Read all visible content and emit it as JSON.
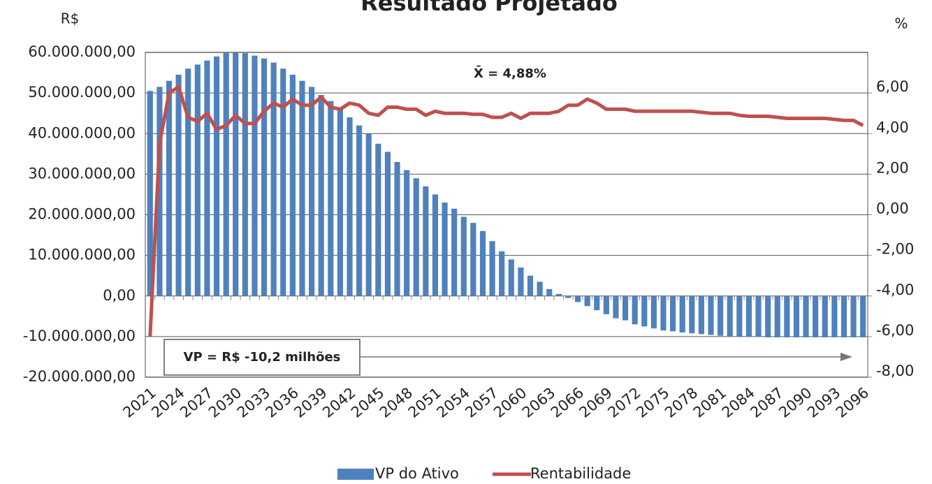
{
  "chart_data": {
    "type": "bar_line",
    "title": "Resultado Projetado",
    "y_label": "R$",
    "y2_label": "%",
    "annotations": [
      "X̄ = 4,88%",
      "VP = R$ -10,2 milhões"
    ],
    "categories": [
      "2021",
      null,
      null,
      "2024",
      null,
      null,
      "2027",
      null,
      null,
      "2030",
      null,
      null,
      "2033",
      null,
      null,
      "2036",
      null,
      null,
      "2039",
      null,
      null,
      "2042",
      null,
      null,
      "2045",
      null,
      null,
      "2048",
      null,
      null,
      "2051",
      null,
      null,
      "2054",
      null,
      null,
      "2057",
      null,
      null,
      "2060",
      null,
      null,
      "2063",
      null,
      null,
      "2066",
      null,
      null,
      "2069",
      null,
      null,
      "2072",
      null,
      null,
      "2075",
      null,
      null,
      "2078",
      null,
      null,
      "2081",
      null,
      null,
      "2084",
      null,
      null,
      "2087",
      null,
      null,
      "2090",
      null,
      null,
      "2093",
      null,
      null,
      "2096"
    ],
    "series": [
      {
        "name": "VP do Ativo",
        "type": "bar",
        "color": "#4f81bd",
        "values": [
          50500000,
          51500000,
          53000000,
          54500000,
          56000000,
          57000000,
          58000000,
          59000000,
          60000000,
          60000000,
          59800000,
          59200000,
          58500000,
          57500000,
          56000000,
          54500000,
          53000000,
          51500000,
          49500000,
          48000000,
          46000000,
          44000000,
          42000000,
          40000000,
          37500000,
          35500000,
          33000000,
          31000000,
          29000000,
          27000000,
          25000000,
          23000000,
          21500000,
          19500000,
          18000000,
          16000000,
          13500000,
          11000000,
          9000000,
          7000000,
          5000000,
          3500000,
          1700000,
          500000,
          -500000,
          -1500000,
          -2500000,
          -3500000,
          -4500000,
          -5500000,
          -6000000,
          -7000000,
          -7500000,
          -8000000,
          -8500000,
          -8700000,
          -9000000,
          -9200000,
          -9400000,
          -9600000,
          -9800000,
          -9900000,
          -10000000,
          -10100000,
          -10100000,
          -10200000,
          -10200000,
          -10200000,
          -10200000,
          -10200000,
          -10200000,
          -10200000,
          -10200000,
          -10200000,
          -10200000,
          -10200000
        ]
      },
      {
        "name": "Rentabilidade",
        "type": "line",
        "axis": "y2",
        "color": "#c0504d",
        "values": [
          -6,
          3.5,
          6,
          6.3,
          4.8,
          4.6,
          5,
          4.2,
          4.4,
          4.9,
          4.5,
          4.5,
          5.1,
          5.5,
          5.3,
          5.7,
          5.4,
          5.4,
          5.8,
          5.3,
          5.2,
          5.5,
          5.4,
          5,
          4.9,
          5.3,
          5.3,
          5.2,
          5.2,
          4.9,
          5.1,
          5,
          5,
          5,
          4.95,
          4.95,
          4.8,
          4.8,
          5,
          4.75,
          5,
          5,
          5,
          5.1,
          5.4,
          5.4,
          5.7,
          5.5,
          5.2,
          5.2,
          5.2,
          5.1,
          5.1,
          5.1,
          5.1,
          5.1,
          5.1,
          5.1,
          5.05,
          5,
          5,
          5,
          4.9,
          4.85,
          4.85,
          4.85,
          4.8,
          4.75,
          4.75,
          4.75,
          4.75,
          4.75,
          4.7,
          4.65,
          4.65,
          4.4
        ]
      }
    ],
    "ylim": [
      -20000000,
      60000000
    ],
    "yticks": [
      {
        "value": -20000000,
        "label": "-20.000.000,00"
      },
      {
        "value": -10000000,
        "label": "-10.000.000,00"
      },
      {
        "value": 0,
        "label": "0,00"
      },
      {
        "value": 10000000,
        "label": "10.000.000,00"
      },
      {
        "value": 20000000,
        "label": "20.000.000,00"
      },
      {
        "value": 30000000,
        "label": "30.000.000,00"
      },
      {
        "value": 40000000,
        "label": "40.000.000,00"
      },
      {
        "value": 50000000,
        "label": "50.000.000,00"
      },
      {
        "value": 60000000,
        "label": "60.000.000,00"
      }
    ],
    "y2lim": [
      -8,
      8
    ],
    "y2ticks": [
      {
        "value": -8,
        "label": "-8,00"
      },
      {
        "value": -6,
        "label": "-6,00"
      },
      {
        "value": -4,
        "label": "-4,00"
      },
      {
        "value": -2,
        "label": "-2,00"
      },
      {
        "value": 0,
        "label": "0,00"
      },
      {
        "value": 2,
        "label": "2,00"
      },
      {
        "value": 4,
        "label": "4,00"
      },
      {
        "value": 6,
        "label": "6,00"
      }
    ],
    "grid": true,
    "legend": "bottom"
  }
}
